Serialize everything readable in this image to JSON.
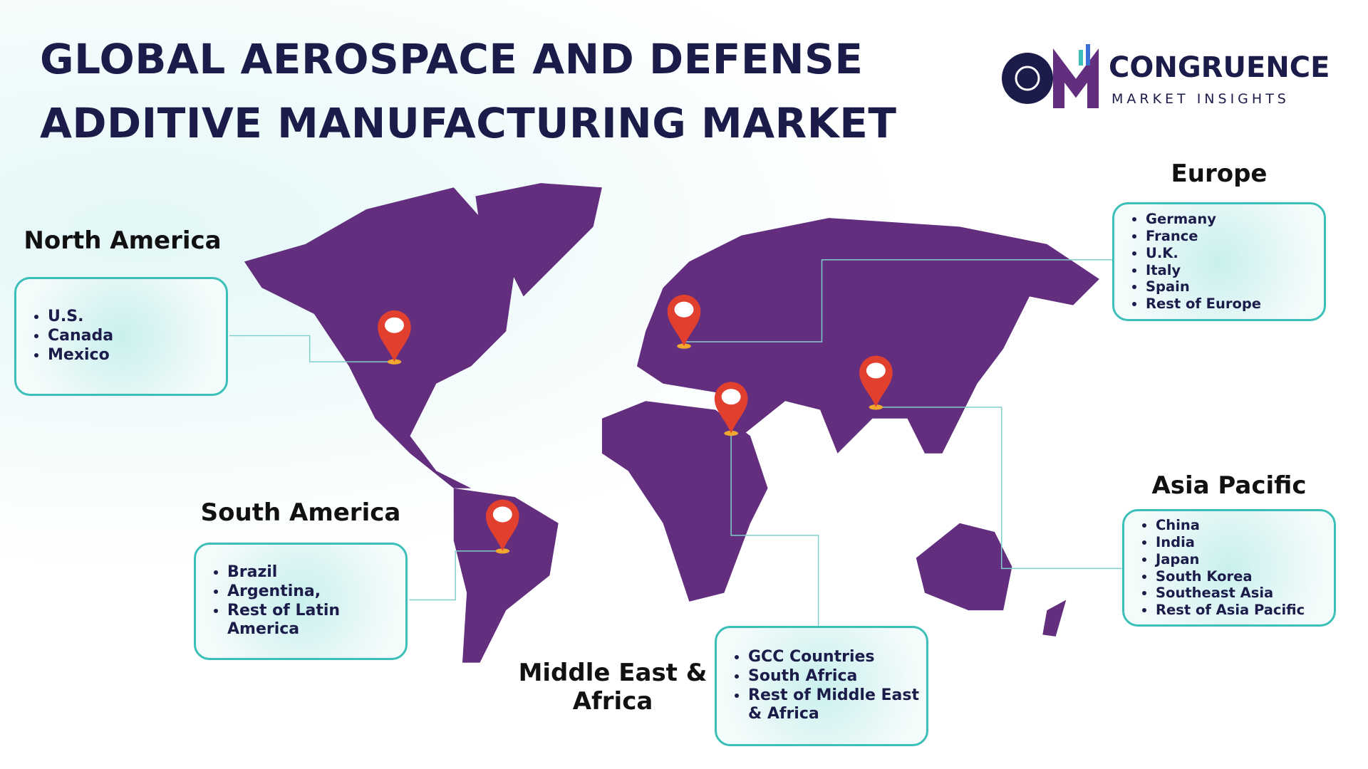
{
  "header": {
    "title_lines": [
      "GLOBAL AEROSPACE AND DEFENSE",
      "ADDITIVE MANUFACTURING MARKET"
    ]
  },
  "logo": {
    "name": "CONGRUENCE",
    "tagline": "MARKET INSIGHTS"
  },
  "regions": [
    {
      "name": "North America",
      "items": [
        "U.S.",
        "Canada",
        "Mexico"
      ]
    },
    {
      "name": "South America",
      "items": [
        "Brazil",
        "Argentina,",
        "Rest of Latin America"
      ]
    },
    {
      "name": "Middle East & Africa",
      "items": [
        "GCC Countries",
        "South Africa",
        "Rest of Middle East & Africa"
      ]
    },
    {
      "name": "Europe",
      "items": [
        "Germany",
        "France",
        "U.K.",
        "Italy",
        "Spain",
        "Rest of Europe"
      ]
    },
    {
      "name": "Asia Pacific",
      "items": [
        "China",
        "India",
        "Japan",
        "South Korea",
        "Southeast Asia",
        "Rest of Asia Pacific"
      ]
    }
  ]
}
